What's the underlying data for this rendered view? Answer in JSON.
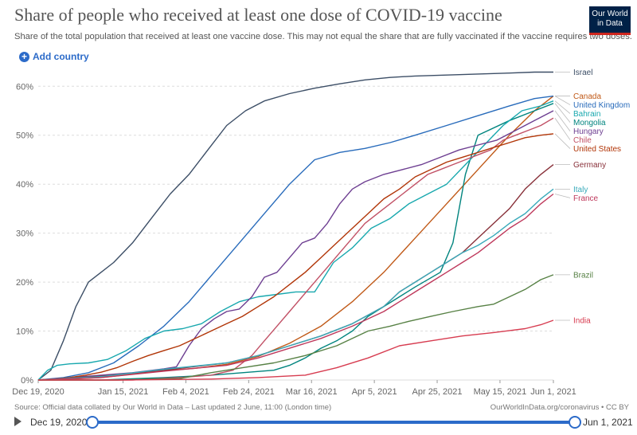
{
  "header": {
    "title": "Share of people who received at least one dose of COVID-19 vaccine",
    "subtitle": "Share of the total population that received at least one vaccine dose. This may not equal the share that are fully vaccinated if the vaccine requires two doses.",
    "logo_line1": "Our World",
    "logo_line2": "in Data"
  },
  "controls": {
    "add_country": "Add country"
  },
  "footer": {
    "source": "Source: Official data collated by Our World in Data – Last updated 2 June, 11:00 (London time)",
    "credit": "OurWorldInData.org/coronavirus • CC BY"
  },
  "timeline": {
    "start_label": "Dec 19, 2020",
    "end_label": "Jun 1, 2021",
    "start_day": 0,
    "end_day": 164
  },
  "colors": {
    "accent": "#2c6bc9",
    "grid": "#dddddd",
    "axis_text": "#666666"
  },
  "chart_data": {
    "type": "line",
    "title": "Share of people who received at least one dose of COVID-19 vaccine",
    "xlabel": "",
    "ylabel": "",
    "x_unit": "days since Dec 19, 2020",
    "xlim": [
      0,
      164
    ],
    "ylim": [
      0,
      62
    ],
    "y_ticks": [
      0,
      10,
      20,
      30,
      40,
      50,
      60
    ],
    "y_tick_labels": [
      "0%",
      "10%",
      "20%",
      "30%",
      "40%",
      "50%",
      "60%"
    ],
    "x_ticks": [
      0,
      27,
      47,
      67,
      87,
      107,
      127,
      147,
      164
    ],
    "x_tick_labels": [
      "Dec 19, 2020",
      "Jan 15, 2021",
      "Feb 4, 2021",
      "Feb 24, 2021",
      "Mar 16, 2021",
      "Apr 5, 2021",
      "Apr 25, 2021",
      "May 15, 2021",
      "Jun 1, 2021"
    ],
    "grid": true,
    "series": [
      {
        "name": "Israel",
        "color": "#3c4e66",
        "x": [
          0,
          4,
          8,
          12,
          16,
          20,
          24,
          30,
          36,
          42,
          48,
          54,
          60,
          66,
          72,
          80,
          88,
          96,
          104,
          112,
          120,
          130,
          140,
          150,
          158,
          164
        ],
        "values": [
          0,
          2,
          8,
          15,
          20,
          22,
          24,
          28,
          33,
          38,
          42,
          47,
          52,
          55,
          57,
          58.5,
          59.6,
          60.5,
          61.3,
          61.8,
          62.1,
          62.3,
          62.5,
          62.7,
          62.9,
          62.9
        ]
      },
      {
        "name": "Canada",
        "color": "#c05917",
        "x": [
          0,
          10,
          20,
          30,
          40,
          50,
          60,
          70,
          80,
          90,
          100,
          110,
          120,
          130,
          140,
          150,
          158,
          164
        ],
        "values": [
          0,
          0.2,
          0.5,
          1.2,
          1.9,
          2.4,
          3.2,
          4.8,
          7.5,
          11,
          16,
          22,
          29,
          36,
          43,
          50,
          55,
          58
        ]
      },
      {
        "name": "United Kingdom",
        "color": "#286bbb",
        "x": [
          0,
          8,
          16,
          24,
          32,
          40,
          48,
          56,
          64,
          72,
          80,
          88,
          96,
          104,
          112,
          120,
          130,
          140,
          150,
          158,
          164
        ],
        "values": [
          0,
          0.5,
          1.5,
          3.5,
          7,
          11,
          16,
          22,
          28,
          34,
          40,
          45,
          46.5,
          47.3,
          48.5,
          50,
          52,
          54,
          56,
          57.5,
          58
        ]
      },
      {
        "name": "Mongolia",
        "color": "#00847e",
        "x": [
          0,
          20,
          40,
          55,
          65,
          75,
          80,
          85,
          90,
          95,
          100,
          105,
          110,
          115,
          120,
          128,
          132,
          136,
          140,
          150,
          158,
          164
        ],
        "values": [
          0,
          0,
          0.5,
          1,
          1.5,
          2,
          3,
          4.5,
          6.5,
          8,
          10,
          13,
          15,
          17,
          19,
          22,
          28,
          42,
          50,
          53,
          55,
          56.5
        ]
      },
      {
        "name": "Bahrain",
        "color": "#18a8ae",
        "x": [
          0,
          3,
          6,
          10,
          16,
          22,
          28,
          34,
          40,
          46,
          52,
          58,
          64,
          70,
          76,
          82,
          88,
          94,
          100,
          106,
          112,
          118,
          124,
          130,
          136,
          142,
          148,
          154,
          160,
          164
        ],
        "values": [
          0,
          2,
          3,
          3.3,
          3.5,
          4.2,
          6,
          8.5,
          10,
          10.5,
          11.5,
          14,
          16,
          17,
          17.5,
          18,
          18,
          24,
          27,
          31,
          33,
          36,
          38,
          40,
          44,
          48,
          52,
          55,
          56,
          57
        ]
      },
      {
        "name": "Chile",
        "color": "#c15065",
        "x": [
          0,
          30,
          45,
          55,
          62,
          68,
          72,
          76,
          80,
          84,
          88,
          92,
          96,
          100,
          104,
          108,
          112,
          116,
          120,
          124,
          128,
          132,
          136,
          140,
          144,
          148,
          152,
          156,
          160,
          164
        ],
        "values": [
          0,
          0,
          0.5,
          1,
          2,
          5,
          8,
          11,
          14,
          17,
          20,
          23,
          26,
          29,
          32,
          34,
          36,
          38,
          40,
          42,
          43,
          44,
          45,
          46,
          47,
          49,
          50,
          51,
          52,
          53.5
        ]
      },
      {
        "name": "Hungary",
        "color": "#6d3e91",
        "x": [
          0,
          10,
          20,
          30,
          40,
          44,
          48,
          52,
          56,
          60,
          64,
          68,
          72,
          76,
          80,
          84,
          88,
          92,
          96,
          100,
          104,
          110,
          116,
          122,
          128,
          134,
          140,
          146,
          152,
          158,
          164
        ],
        "values": [
          0,
          0.5,
          1,
          1.5,
          2.3,
          2.7,
          7,
          10.5,
          12.5,
          14,
          14.5,
          17,
          21,
          22,
          25,
          28,
          29,
          32,
          36,
          39,
          40.5,
          42,
          43,
          44,
          45.5,
          47,
          48,
          49,
          51,
          53,
          55
        ]
      },
      {
        "name": "United States",
        "color": "#b13507",
        "x": [
          0,
          5,
          10,
          15,
          20,
          25,
          30,
          35,
          40,
          45,
          50,
          55,
          60,
          65,
          70,
          75,
          80,
          85,
          90,
          95,
          100,
          105,
          110,
          115,
          120,
          125,
          130,
          135,
          140,
          145,
          150,
          155,
          160,
          164
        ],
        "values": [
          0,
          0.2,
          0.5,
          1,
          1.6,
          2.5,
          3.8,
          5,
          6,
          7,
          8.5,
          10,
          11.5,
          13,
          15,
          17,
          19.5,
          22,
          25,
          28,
          31,
          34,
          37,
          39,
          41.5,
          43,
          44.5,
          45.5,
          46.5,
          47.5,
          48.5,
          49.5,
          50,
          50.3
        ]
      },
      {
        "name": "Germany",
        "color": "#883039",
        "x": [
          0,
          20,
          40,
          60,
          70,
          80,
          90,
          100,
          110,
          115,
          120,
          125,
          130,
          135,
          140,
          145,
          150,
          155,
          160,
          164
        ],
        "values": [
          0,
          0.8,
          2,
          3.5,
          5,
          7,
          9,
          11.5,
          15,
          18,
          20,
          22,
          24,
          26,
          29,
          32,
          35,
          39,
          42,
          44
        ]
      },
      {
        "name": "Italy",
        "color": "#38aaba",
        "x": [
          0,
          20,
          40,
          60,
          70,
          80,
          90,
          100,
          110,
          115,
          120,
          125,
          130,
          135,
          140,
          145,
          150,
          155,
          160,
          164
        ],
        "values": [
          0,
          0.7,
          2.2,
          3.5,
          5,
          7,
          9,
          11.5,
          15,
          18,
          20,
          22,
          24,
          26,
          27.5,
          29.5,
          32,
          34,
          37,
          39
        ]
      },
      {
        "name": "France",
        "color": "#be385b",
        "x": [
          0,
          20,
          40,
          60,
          70,
          80,
          90,
          100,
          110,
          115,
          120,
          125,
          130,
          135,
          140,
          145,
          150,
          155,
          160,
          164
        ],
        "values": [
          0,
          0.5,
          1.8,
          3,
          4.5,
          6.5,
          8.5,
          11,
          14,
          16,
          18,
          20,
          22,
          24,
          26,
          28.5,
          31,
          33,
          36,
          38
        ]
      },
      {
        "name": "Brazil",
        "color": "#578145",
        "x": [
          0,
          25,
          45,
          55,
          65,
          75,
          85,
          95,
          105,
          112,
          118,
          125,
          132,
          140,
          145,
          150,
          155,
          160,
          164
        ],
        "values": [
          0,
          0,
          0.3,
          1.5,
          2.5,
          3.5,
          5,
          7,
          10,
          11,
          12,
          13,
          14,
          15,
          15.5,
          17,
          18.5,
          20.5,
          21.5
        ]
      },
      {
        "name": "India",
        "color": "#d73c50",
        "x": [
          0,
          25,
          40,
          55,
          70,
          85,
          95,
          105,
          115,
          125,
          135,
          145,
          155,
          160,
          164
        ],
        "values": [
          0,
          0,
          0.1,
          0.2,
          0.5,
          1,
          2.5,
          4.5,
          7,
          8,
          9,
          9.7,
          10.5,
          11.3,
          12.2
        ]
      }
    ]
  }
}
